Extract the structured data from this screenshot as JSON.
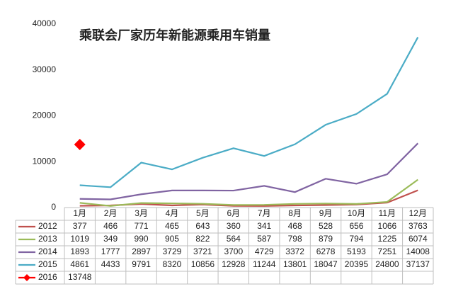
{
  "chart_data": {
    "type": "line",
    "title": "乘联会厂家历年新能源乘用车销量",
    "categories": [
      "1月",
      "2月",
      "3月",
      "4月",
      "5月",
      "6月",
      "7月",
      "8月",
      "9月",
      "10月",
      "11月",
      "12月"
    ],
    "ylim": [
      0,
      40000
    ],
    "yticks": [
      0,
      10000,
      20000,
      30000,
      40000
    ],
    "grid": false,
    "series": [
      {
        "name": "2012",
        "color": "#c0504d",
        "values": [
          377,
          466,
          771,
          465,
          643,
          360,
          341,
          468,
          528,
          656,
          1066,
          3763
        ]
      },
      {
        "name": "2013",
        "color": "#9bbb59",
        "values": [
          1019,
          349,
          990,
          905,
          822,
          564,
          587,
          798,
          879,
          794,
          1225,
          6074
        ]
      },
      {
        "name": "2014",
        "color": "#8064a2",
        "values": [
          1893,
          1777,
          2897,
          3729,
          3721,
          3700,
          4729,
          3372,
          6278,
          5193,
          7251,
          14008
        ]
      },
      {
        "name": "2015",
        "color": "#4bacc6",
        "values": [
          4861,
          4433,
          9791,
          8320,
          10856,
          12928,
          11244,
          13801,
          18047,
          20395,
          24800,
          37137
        ]
      },
      {
        "name": "2016",
        "color": "#ff0000",
        "marker": "diamond",
        "values": [
          13748,
          null,
          null,
          null,
          null,
          null,
          null,
          null,
          null,
          null,
          null,
          null
        ]
      }
    ]
  }
}
